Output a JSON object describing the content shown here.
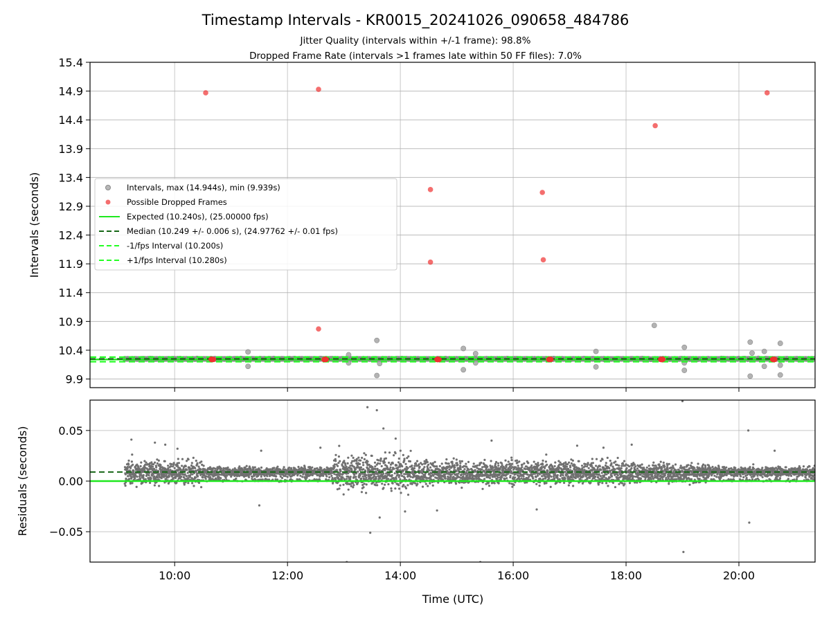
{
  "title": "Timestamp Intervals - KR0015_20241026_090658_484786",
  "subtitle_1": "Jitter Quality (intervals within +/-1 frame): 98.8%",
  "subtitle_2": "Dropped Frame Rate (intervals >1 frames late within 50 FF files): 7.0%",
  "colors": {
    "intervals": "#a0a0a0",
    "dropped": "#f03030",
    "expected": "#1ee81e",
    "median": "#156615",
    "bounds": "#22ff22",
    "residual_dots": "#707070",
    "grid": "#b0b0b0"
  },
  "chart_data": [
    {
      "type": "scatter",
      "panel": "top",
      "ylabel": "Intervals (seconds)",
      "ylim": [
        9.75,
        15.4
      ],
      "yticks": [
        "9.9",
        "10.4",
        "10.9",
        "11.4",
        "11.9",
        "12.4",
        "12.9",
        "13.4",
        "13.9",
        "14.4",
        "14.9",
        "15.4"
      ],
      "grid": true,
      "legend_position": "center-left",
      "series": [
        {
          "name": "Intervals, max (14.944s), min (9.939s)",
          "kind": "scatter"
        },
        {
          "name": "Possible Dropped Frames",
          "kind": "scatter",
          "points": [
            [
              "10:33",
              14.87
            ],
            [
              "12:33",
              14.93
            ],
            [
              "14:32",
              13.19
            ],
            [
              "14:32",
              11.93
            ],
            [
              "12:33",
              10.77
            ],
            [
              "16:31",
              13.14
            ],
            [
              "16:32",
              11.97
            ],
            [
              "18:31",
              14.3
            ],
            [
              "20:30",
              14.87
            ],
            [
              "10:40",
              10.24
            ],
            [
              "12:40",
              10.24
            ],
            [
              "14:40",
              10.24
            ],
            [
              "16:39",
              10.24
            ],
            [
              "18:38",
              10.24
            ],
            [
              "20:37",
              10.24
            ]
          ]
        },
        {
          "name": "Expected (10.240s), (25.00000 fps)",
          "kind": "hline",
          "y": 10.24
        },
        {
          "name": "Median (10.249 +/- 0.006 s), (24.97762 +/- 0.01 fps)",
          "kind": "hline",
          "y": 10.249
        },
        {
          "name": "-1/fps Interval (10.200s)",
          "kind": "hline",
          "y": 10.2
        },
        {
          "name": "+1/fps Interval (10.280s)",
          "kind": "hline",
          "y": 10.28
        }
      ],
      "interval_outliers": [
        [
          "11:18",
          10.37
        ],
        [
          "11:18",
          10.12
        ],
        [
          "13:05",
          10.32
        ],
        [
          "13:05",
          10.18
        ],
        [
          "13:35",
          10.57
        ],
        [
          "13:35",
          9.96
        ],
        [
          "13:38",
          10.17
        ],
        [
          "15:07",
          10.43
        ],
        [
          "15:07",
          10.06
        ],
        [
          "15:20",
          10.34
        ],
        [
          "15:20",
          10.18
        ],
        [
          "17:28",
          10.38
        ],
        [
          "17:28",
          10.11
        ],
        [
          "18:30",
          10.83
        ],
        [
          "19:02",
          10.45
        ],
        [
          "19:02",
          10.05
        ],
        [
          "19:02",
          10.18
        ],
        [
          "20:12",
          10.54
        ],
        [
          "20:12",
          9.95
        ],
        [
          "20:14",
          10.35
        ],
        [
          "20:27",
          10.38
        ],
        [
          "20:27",
          10.12
        ],
        [
          "20:44",
          10.52
        ],
        [
          "20:44",
          9.97
        ],
        [
          "20:44",
          10.14
        ]
      ]
    },
    {
      "type": "scatter",
      "panel": "bottom",
      "xlabel": "Time (UTC)",
      "ylabel": "Residuals (seconds)",
      "x_range": [
        "08:30",
        "21:21"
      ],
      "xticks": [
        "10:00",
        "12:00",
        "14:00",
        "16:00",
        "18:00",
        "20:00"
      ],
      "ylim": [
        -0.08,
        0.08
      ],
      "yticks": [
        "−0.05",
        "0.00",
        "0.05"
      ],
      "grid": true,
      "median_residual": 0.009,
      "expected_residual": 0.0,
      "residual_outliers": [
        [
          "09:14",
          0.041
        ],
        [
          "09:39",
          0.038
        ],
        [
          "09:50",
          0.036
        ],
        [
          "10:03",
          0.032
        ],
        [
          "11:30",
          -0.024
        ],
        [
          "11:32",
          0.03
        ],
        [
          "12:35",
          0.033
        ],
        [
          "13:03",
          -0.08
        ],
        [
          "13:25",
          0.073
        ],
        [
          "13:28",
          -0.051
        ],
        [
          "13:35",
          0.07
        ],
        [
          "13:38",
          -0.036
        ],
        [
          "13:42",
          0.052
        ],
        [
          "13:55",
          0.042
        ],
        [
          "14:05",
          -0.03
        ],
        [
          "14:39",
          -0.029
        ],
        [
          "15:25",
          -0.08
        ],
        [
          "15:37",
          0.04
        ],
        [
          "16:25",
          -0.028
        ],
        [
          "17:08",
          0.035
        ],
        [
          "17:36",
          0.033
        ],
        [
          "18:06",
          0.036
        ],
        [
          "19:00",
          0.079
        ],
        [
          "19:01",
          -0.07
        ],
        [
          "20:10",
          0.05
        ],
        [
          "20:11",
          -0.041
        ],
        [
          "20:38",
          0.03
        ]
      ]
    }
  ]
}
